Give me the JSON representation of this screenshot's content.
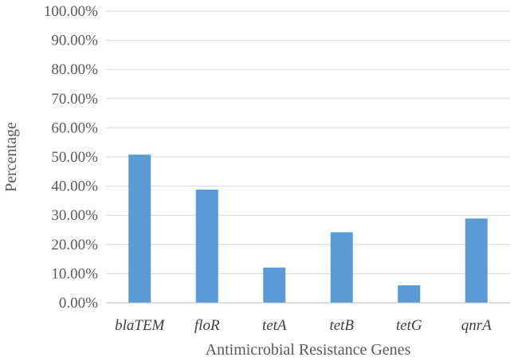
{
  "chart_data": {
    "type": "bar",
    "title": "",
    "xlabel": "Antimicrobial Resistance Genes",
    "ylabel": "Percentage",
    "categories": [
      "blaTEM",
      "floR",
      "tetA",
      "tetB",
      "tetG",
      "qnrA"
    ],
    "values": [
      50.8,
      38.8,
      12.1,
      24.2,
      6.0,
      28.9
    ],
    "ylim": [
      0,
      100
    ],
    "y_ticks": [
      "0.00%",
      "10.00%",
      "20.00%",
      "30.00%",
      "40.00%",
      "50.00%",
      "60.00%",
      "70.00%",
      "80.00%",
      "90.00%",
      "100.00%"
    ],
    "grid": true,
    "bar_color": "#5b9bd5"
  }
}
